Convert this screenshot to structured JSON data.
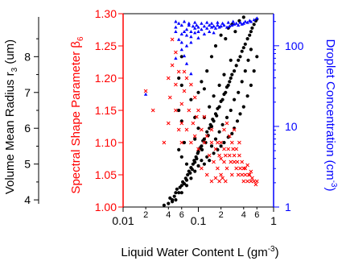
{
  "chart_data": {
    "type": "scatter",
    "title": "",
    "xlabel": {
      "text": "Liquid Water Content L (gm",
      "sup": "-3",
      "close": ")"
    },
    "x_scale": "log",
    "xlim": [
      0.01,
      1
    ],
    "x_major_ticks": [
      {
        "value": 0.01,
        "label": "0.01"
      },
      {
        "value": 0.1,
        "label": "0.1"
      },
      {
        "value": 1,
        "label": "1"
      }
    ],
    "x_minor_ticks": [
      {
        "value": 0.02,
        "label": "2"
      },
      {
        "value": 0.04,
        "label": "4"
      },
      {
        "value": 0.06,
        "label": "6"
      },
      {
        "value": 0.2,
        "label": "2"
      },
      {
        "value": 0.4,
        "label": "4"
      },
      {
        "value": 0.6,
        "label": "6"
      }
    ],
    "axes": {
      "radius": {
        "label": "Volume Mean Radius r",
        "sub": "3",
        "unit": " (um)",
        "color": "#000000",
        "range": [
          3.8,
          9.2
        ],
        "ticks": [
          4,
          5,
          6,
          7,
          8
        ]
      },
      "shape": {
        "label": "Spectral Shape Parameter β",
        "sub": "6",
        "color": "#ff0000",
        "range": [
          1.0,
          1.3
        ],
        "ticks": [
          "1.00",
          "1.05",
          "1.10",
          "1.15",
          "1.20",
          "1.25",
          "1.30"
        ]
      },
      "concentration": {
        "label": "Droplet Concentration (cm",
        "sup": "-3",
        "close": ")",
        "color": "#0000ff",
        "scale": "log",
        "range": [
          1,
          250
        ],
        "ticks": [
          {
            "value": 1,
            "label": "1"
          },
          {
            "value": 10,
            "label": "10"
          },
          {
            "value": 100,
            "label": "100"
          }
        ]
      }
    },
    "series": [
      {
        "axis": "radius",
        "color": "#000000",
        "marker": "circle",
        "points": [
          [
            0.04,
            3.9
          ],
          [
            0.042,
            4.05
          ],
          [
            0.045,
            4.0
          ],
          [
            0.048,
            4.1
          ],
          [
            0.05,
            4.2
          ],
          [
            0.052,
            4.3
          ],
          [
            0.055,
            4.2
          ],
          [
            0.057,
            4.35
          ],
          [
            0.06,
            4.4
          ],
          [
            0.062,
            4.5
          ],
          [
            0.065,
            4.45
          ],
          [
            0.068,
            4.6
          ],
          [
            0.07,
            4.55
          ],
          [
            0.072,
            4.7
          ],
          [
            0.075,
            4.8
          ],
          [
            0.078,
            4.75
          ],
          [
            0.08,
            4.9
          ],
          [
            0.083,
            4.85
          ],
          [
            0.085,
            5.0
          ],
          [
            0.088,
            5.1
          ],
          [
            0.09,
            5.05
          ],
          [
            0.093,
            5.2
          ],
          [
            0.095,
            5.15
          ],
          [
            0.098,
            5.3
          ],
          [
            0.1,
            5.35
          ],
          [
            0.105,
            5.45
          ],
          [
            0.11,
            5.5
          ],
          [
            0.112,
            5.4
          ],
          [
            0.115,
            5.65
          ],
          [
            0.12,
            5.7
          ],
          [
            0.125,
            5.6
          ],
          [
            0.13,
            5.9
          ],
          [
            0.135,
            5.8
          ],
          [
            0.14,
            6.0
          ],
          [
            0.145,
            6.1
          ],
          [
            0.15,
            6.05
          ],
          [
            0.155,
            6.25
          ],
          [
            0.16,
            6.2
          ],
          [
            0.17,
            6.4
          ],
          [
            0.175,
            6.35
          ],
          [
            0.18,
            6.55
          ],
          [
            0.19,
            6.6
          ],
          [
            0.2,
            6.75
          ],
          [
            0.21,
            6.8
          ],
          [
            0.22,
            6.95
          ],
          [
            0.23,
            7.0
          ],
          [
            0.24,
            7.15
          ],
          [
            0.25,
            7.2
          ],
          [
            0.26,
            7.3
          ],
          [
            0.27,
            7.4
          ],
          [
            0.28,
            7.5
          ],
          [
            0.3,
            7.6
          ],
          [
            0.32,
            7.75
          ],
          [
            0.34,
            7.9
          ],
          [
            0.36,
            8.0
          ],
          [
            0.38,
            8.15
          ],
          [
            0.4,
            8.25
          ],
          [
            0.42,
            8.35
          ],
          [
            0.45,
            8.5
          ],
          [
            0.48,
            8.6
          ],
          [
            0.5,
            8.7
          ],
          [
            0.52,
            8.8
          ],
          [
            0.55,
            8.9
          ],
          [
            0.58,
            9.0
          ],
          [
            0.6,
            9.05
          ],
          [
            0.12,
            5.0
          ],
          [
            0.14,
            5.1
          ],
          [
            0.16,
            5.3
          ],
          [
            0.18,
            5.4
          ],
          [
            0.2,
            5.5
          ],
          [
            0.22,
            5.6
          ],
          [
            0.25,
            5.75
          ],
          [
            0.28,
            5.85
          ],
          [
            0.3,
            6.0
          ],
          [
            0.33,
            6.2
          ],
          [
            0.36,
            6.4
          ],
          [
            0.4,
            6.6
          ],
          [
            0.45,
            6.9
          ],
          [
            0.5,
            7.2
          ],
          [
            0.55,
            7.6
          ],
          [
            0.6,
            8.0
          ],
          [
            0.13,
            5.2
          ],
          [
            0.15,
            5.5
          ],
          [
            0.17,
            5.7
          ],
          [
            0.19,
            5.9
          ],
          [
            0.21,
            6.1
          ],
          [
            0.24,
            6.3
          ],
          [
            0.27,
            6.5
          ],
          [
            0.3,
            6.8
          ],
          [
            0.34,
            7.0
          ],
          [
            0.38,
            7.3
          ],
          [
            0.42,
            7.6
          ],
          [
            0.46,
            7.9
          ],
          [
            0.5,
            8.2
          ],
          [
            0.09,
            4.8
          ],
          [
            0.1,
            4.95
          ],
          [
            0.11,
            5.1
          ],
          [
            0.08,
            4.6
          ],
          [
            0.07,
            4.4
          ],
          [
            0.06,
            4.2
          ],
          [
            0.05,
            4.0
          ],
          [
            0.045,
            3.95
          ],
          [
            0.035,
            3.85
          ],
          [
            0.06,
            5.2
          ],
          [
            0.055,
            5.4
          ],
          [
            0.065,
            5.6
          ],
          [
            0.06,
            6.2
          ],
          [
            0.055,
            6.5
          ],
          [
            0.06,
            7.2
          ],
          [
            0.055,
            7.4
          ],
          [
            0.06,
            8.0
          ],
          [
            0.08,
            6.8
          ],
          [
            0.07,
            5.0
          ],
          [
            0.09,
            6.3
          ],
          [
            0.1,
            7.0
          ],
          [
            0.11,
            7.3
          ],
          [
            0.12,
            7.1
          ],
          [
            0.13,
            7.6
          ],
          [
            0.15,
            8.0
          ],
          [
            0.17,
            8.3
          ],
          [
            0.2,
            8.6
          ],
          [
            0.23,
            8.5
          ],
          [
            0.25,
            8.8
          ],
          [
            0.28,
            8.9
          ],
          [
            0.31,
            8.7
          ],
          [
            0.35,
            9.0
          ],
          [
            0.4,
            9.1
          ],
          [
            0.27,
            7.9
          ],
          [
            0.22,
            7.5
          ],
          [
            0.19,
            7.2
          ],
          [
            0.16,
            6.9
          ],
          [
            0.14,
            6.6
          ],
          [
            0.12,
            6.3
          ],
          [
            0.1,
            6.0
          ],
          [
            0.09,
            5.7
          ]
        ]
      },
      {
        "axis": "shape",
        "color": "#ff0000",
        "marker": "x",
        "points": [
          [
            0.02,
            1.18
          ],
          [
            0.025,
            1.15
          ],
          [
            0.04,
            1.2
          ],
          [
            0.042,
            1.17
          ],
          [
            0.045,
            1.22
          ],
          [
            0.05,
            1.19
          ],
          [
            0.055,
            1.21
          ],
          [
            0.06,
            1.16
          ],
          [
            0.06,
            1.13
          ],
          [
            0.065,
            1.18
          ],
          [
            0.07,
            1.12
          ],
          [
            0.075,
            1.15
          ],
          [
            0.08,
            1.1
          ],
          [
            0.085,
            1.13
          ],
          [
            0.09,
            1.11
          ],
          [
            0.095,
            1.14
          ],
          [
            0.1,
            1.09
          ],
          [
            0.11,
            1.12
          ],
          [
            0.12,
            1.1
          ],
          [
            0.13,
            1.11
          ],
          [
            0.14,
            1.08
          ],
          [
            0.15,
            1.1
          ],
          [
            0.16,
            1.07
          ],
          [
            0.17,
            1.09
          ],
          [
            0.18,
            1.06
          ],
          [
            0.19,
            1.08
          ],
          [
            0.2,
            1.05
          ],
          [
            0.22,
            1.07
          ],
          [
            0.24,
            1.06
          ],
          [
            0.26,
            1.08
          ],
          [
            0.28,
            1.05
          ],
          [
            0.3,
            1.07
          ],
          [
            0.32,
            1.06
          ],
          [
            0.34,
            1.05
          ],
          [
            0.36,
            1.06
          ],
          [
            0.38,
            1.05
          ],
          [
            0.4,
            1.04
          ],
          [
            0.42,
            1.05
          ],
          [
            0.45,
            1.04
          ],
          [
            0.48,
            1.05
          ],
          [
            0.5,
            1.04
          ],
          [
            0.52,
            1.045
          ],
          [
            0.55,
            1.04
          ],
          [
            0.58,
            1.035
          ],
          [
            0.6,
            1.04
          ],
          [
            0.2,
            1.1
          ],
          [
            0.22,
            1.12
          ],
          [
            0.25,
            1.09
          ],
          [
            0.28,
            1.1
          ],
          [
            0.3,
            1.08
          ],
          [
            0.32,
            1.09
          ],
          [
            0.35,
            1.08
          ],
          [
            0.38,
            1.07
          ],
          [
            0.42,
            1.06
          ],
          [
            0.45,
            1.065
          ],
          [
            0.5,
            1.055
          ],
          [
            0.26,
            1.11
          ],
          [
            0.24,
            1.13
          ],
          [
            0.3,
            1.12
          ],
          [
            0.18,
            1.1
          ],
          [
            0.15,
            1.12
          ],
          [
            0.12,
            1.14
          ],
          [
            0.1,
            1.15
          ],
          [
            0.09,
            1.17
          ],
          [
            0.08,
            1.19
          ],
          [
            0.07,
            1.2
          ],
          [
            0.065,
            1.21
          ],
          [
            0.11,
            1.06
          ],
          [
            0.13,
            1.05
          ],
          [
            0.15,
            1.04
          ],
          [
            0.17,
            1.045
          ],
          [
            0.19,
            1.04
          ],
          [
            0.21,
            1.045
          ],
          [
            0.23,
            1.04
          ],
          [
            0.05,
            1.24
          ],
          [
            0.045,
            1.26
          ],
          [
            0.05,
            1.15
          ],
          [
            0.055,
            1.12
          ],
          [
            0.06,
            1.1
          ],
          [
            0.04,
            1.13
          ],
          [
            0.035,
            1.1
          ],
          [
            0.22,
            1.09
          ],
          [
            0.27,
            1.07
          ],
          [
            0.33,
            1.07
          ],
          [
            0.4,
            1.06
          ],
          [
            0.47,
            1.05
          ],
          [
            0.35,
            1.1
          ],
          [
            0.29,
            1.09
          ],
          [
            0.23,
            1.08
          ],
          [
            0.2,
            1.075
          ]
        ]
      },
      {
        "axis": "concentration",
        "color": "#0000ff",
        "marker": "triangle",
        "points": [
          [
            0.02,
            25
          ],
          [
            0.05,
            170
          ],
          [
            0.055,
            120
          ],
          [
            0.06,
            180
          ],
          [
            0.06,
            110
          ],
          [
            0.065,
            150
          ],
          [
            0.07,
            160
          ],
          [
            0.075,
            180
          ],
          [
            0.08,
            150
          ],
          [
            0.085,
            175
          ],
          [
            0.09,
            165
          ],
          [
            0.095,
            180
          ],
          [
            0.1,
            170
          ],
          [
            0.11,
            160
          ],
          [
            0.12,
            175
          ],
          [
            0.13,
            165
          ],
          [
            0.14,
            180
          ],
          [
            0.15,
            170
          ],
          [
            0.16,
            175
          ],
          [
            0.17,
            165
          ],
          [
            0.18,
            180
          ],
          [
            0.19,
            170
          ],
          [
            0.2,
            175
          ],
          [
            0.22,
            180
          ],
          [
            0.24,
            170
          ],
          [
            0.26,
            175
          ],
          [
            0.28,
            180
          ],
          [
            0.3,
            185
          ],
          [
            0.32,
            190
          ],
          [
            0.34,
            180
          ],
          [
            0.36,
            195
          ],
          [
            0.38,
            185
          ],
          [
            0.4,
            190
          ],
          [
            0.42,
            200
          ],
          [
            0.45,
            195
          ],
          [
            0.48,
            205
          ],
          [
            0.5,
            200
          ],
          [
            0.55,
            210
          ],
          [
            0.6,
            220
          ],
          [
            0.05,
            200
          ],
          [
            0.055,
            190
          ],
          [
            0.065,
            200
          ],
          [
            0.075,
            190
          ],
          [
            0.09,
            195
          ],
          [
            0.11,
            190
          ],
          [
            0.13,
            195
          ],
          [
            0.15,
            190
          ],
          [
            0.18,
            195
          ],
          [
            0.21,
            190
          ],
          [
            0.25,
            195
          ],
          [
            0.29,
            200
          ],
          [
            0.05,
            150
          ],
          [
            0.06,
            140
          ],
          [
            0.07,
            135
          ],
          [
            0.08,
            130
          ],
          [
            0.09,
            145
          ],
          [
            0.1,
            150
          ],
          [
            0.12,
            140
          ],
          [
            0.14,
            150
          ],
          [
            0.16,
            145
          ],
          [
            0.06,
            90
          ],
          [
            0.065,
            75
          ],
          [
            0.07,
            60
          ],
          [
            0.08,
            45
          ],
          [
            0.05,
            70
          ],
          [
            0.07,
            100
          ],
          [
            0.08,
            110
          ],
          [
            0.1,
            125
          ]
        ]
      }
    ]
  }
}
